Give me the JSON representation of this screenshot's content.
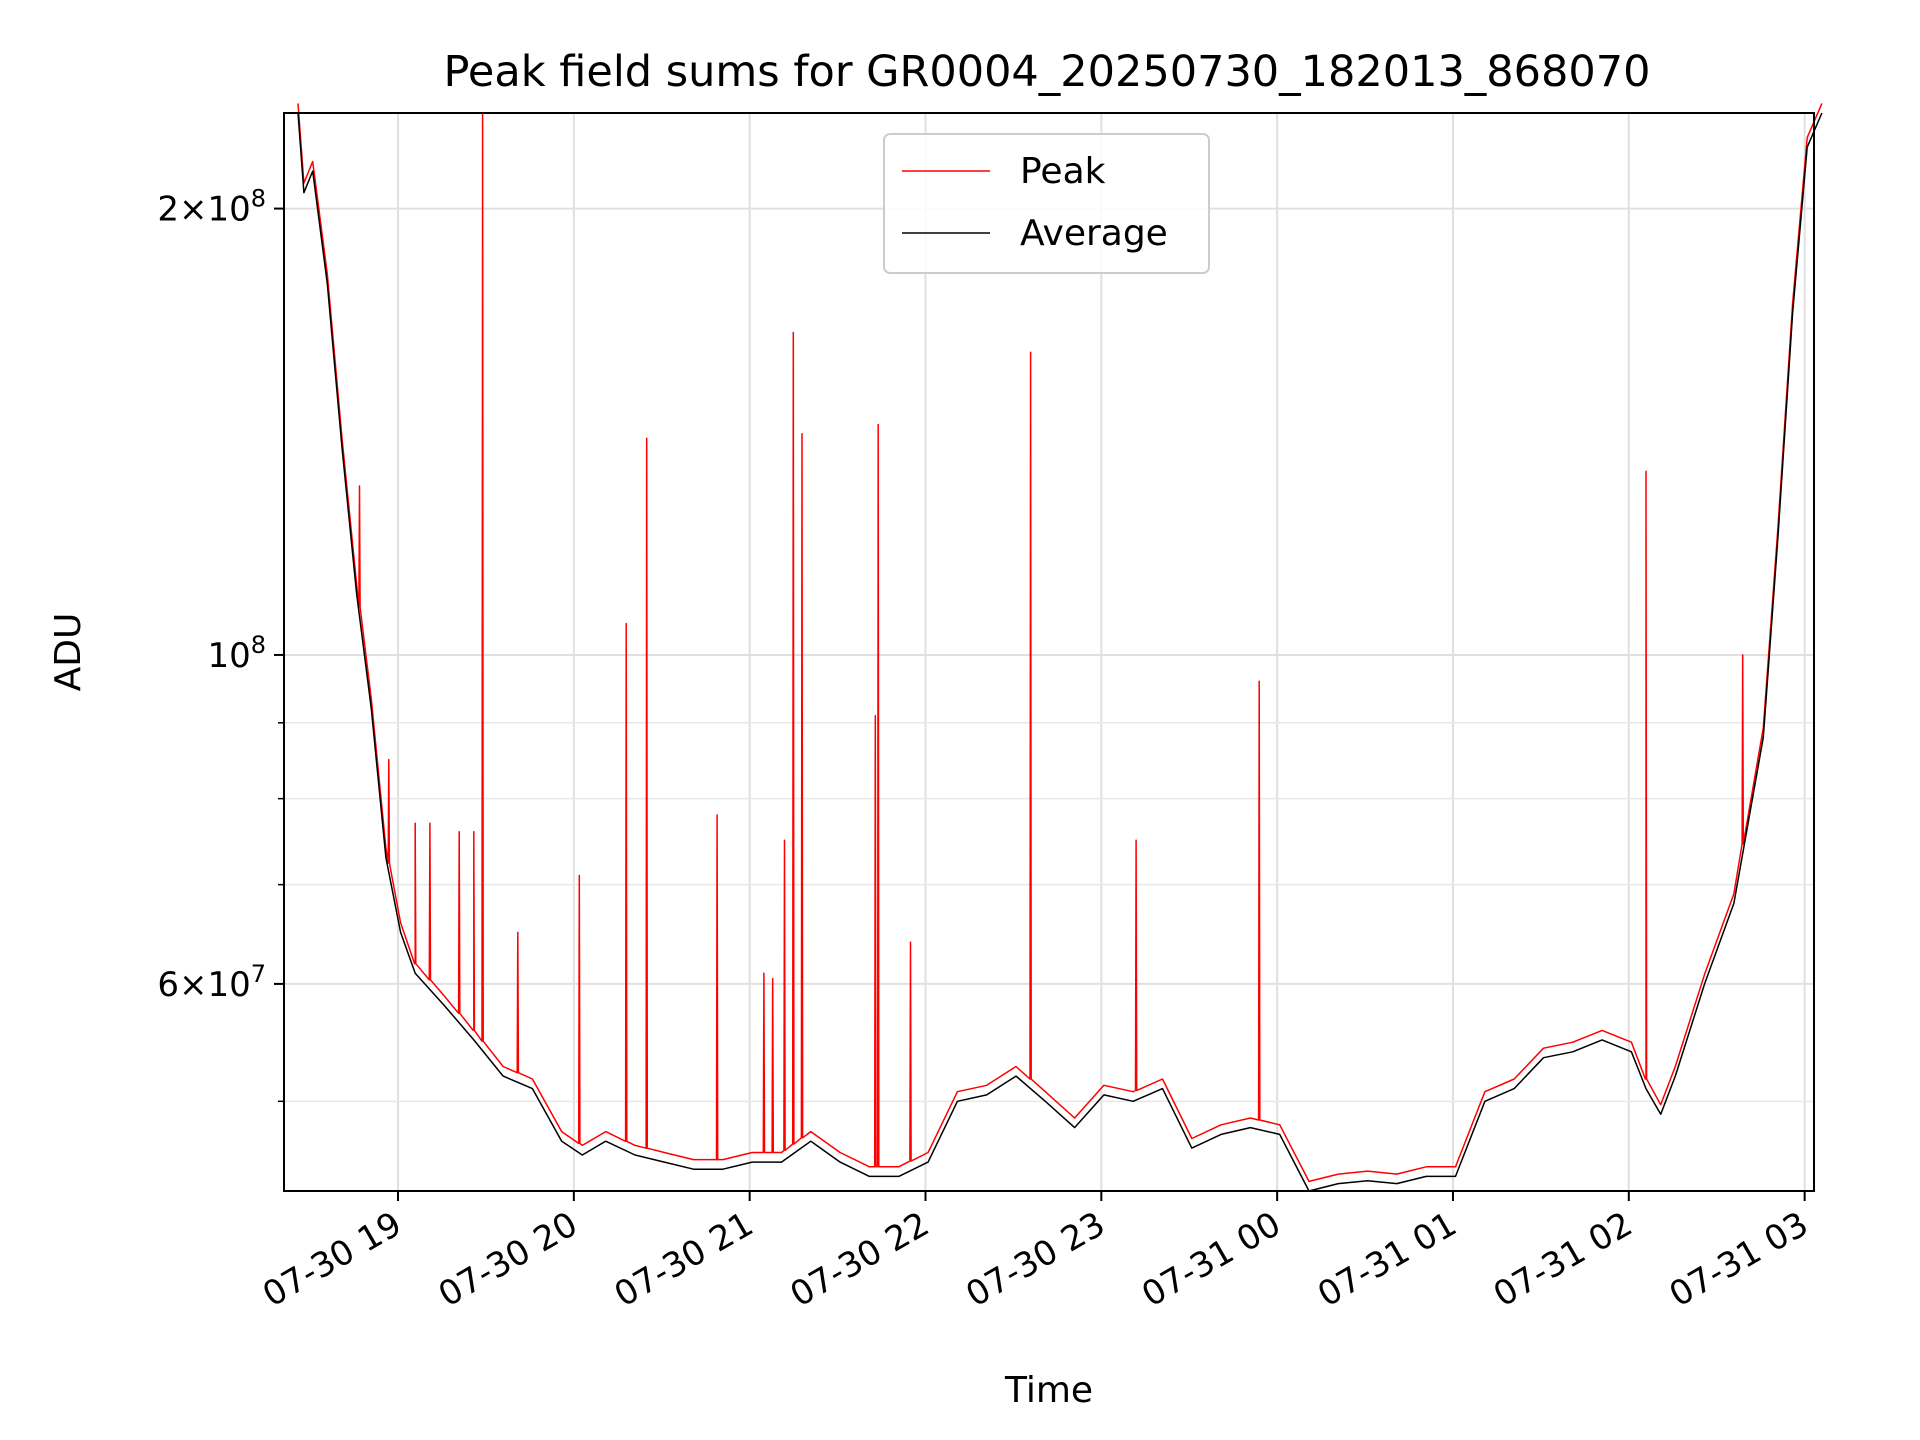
{
  "chart_data": {
    "type": "line",
    "title": "Peak field sums for GR0004_20250730_182013_868070",
    "xlabel": "Time",
    "ylabel": "ADU",
    "yscale": "log",
    "ylim": [
      43500000,
      232000000
    ],
    "xlim": [
      "2025-07-30 18:20",
      "2025-07-31 03:00"
    ],
    "grid": true,
    "legend_position": "upper center",
    "x_ticks": [
      "07-30 19",
      "07-30 20",
      "07-30 21",
      "07-30 22",
      "07-30 23",
      "07-31 00",
      "07-31 01",
      "07-31 02",
      "07-31 03"
    ],
    "y_ticks": [
      {
        "value": 200000000,
        "mantissa": "2",
        "base": "10",
        "exp": "8"
      },
      {
        "value": 100000000,
        "mantissa": "",
        "base": "10",
        "exp": "8"
      },
      {
        "value": 60000000,
        "mantissa": "6",
        "base": "10",
        "exp": "7"
      }
    ],
    "colors": {
      "Peak": "#ff0000",
      "Average": "#000000"
    },
    "series": [
      {
        "name": "Average",
        "x": [
          "2025-07-30 18:20",
          "2025-07-30 18:22",
          "2025-07-30 18:25",
          "2025-07-30 18:30",
          "2025-07-30 18:35",
          "2025-07-30 18:40",
          "2025-07-30 18:45",
          "2025-07-30 18:50",
          "2025-07-30 18:55",
          "2025-07-30 19:00",
          "2025-07-30 19:10",
          "2025-07-30 19:20",
          "2025-07-30 19:30",
          "2025-07-30 19:40",
          "2025-07-30 19:50",
          "2025-07-30 19:57",
          "2025-07-30 20:05",
          "2025-07-30 20:15",
          "2025-07-30 20:25",
          "2025-07-30 20:35",
          "2025-07-30 20:45",
          "2025-07-30 20:55",
          "2025-07-30 21:05",
          "2025-07-30 21:15",
          "2025-07-30 21:25",
          "2025-07-30 21:35",
          "2025-07-30 21:45",
          "2025-07-30 21:55",
          "2025-07-30 22:05",
          "2025-07-30 22:15",
          "2025-07-30 22:25",
          "2025-07-30 22:35",
          "2025-07-30 22:45",
          "2025-07-30 22:55",
          "2025-07-30 23:05",
          "2025-07-30 23:15",
          "2025-07-30 23:25",
          "2025-07-30 23:35",
          "2025-07-30 23:45",
          "2025-07-30 23:55",
          "2025-07-31 00:05",
          "2025-07-31 00:15",
          "2025-07-31 00:25",
          "2025-07-31 00:35",
          "2025-07-31 00:45",
          "2025-07-31 00:55",
          "2025-07-31 01:05",
          "2025-07-31 01:15",
          "2025-07-31 01:25",
          "2025-07-31 01:35",
          "2025-07-31 01:45",
          "2025-07-31 01:55",
          "2025-07-31 02:00",
          "2025-07-31 02:05",
          "2025-07-31 02:10",
          "2025-07-31 02:20",
          "2025-07-31 02:30",
          "2025-07-31 02:40",
          "2025-07-31 02:45",
          "2025-07-31 02:50",
          "2025-07-31 02:55",
          "2025-07-31 03:00"
        ],
        "y": [
          232000000,
          205000000,
          212000000,
          178000000,
          138000000,
          110000000,
          92000000,
          73000000,
          65000000,
          61000000,
          58000000,
          55000000,
          52000000,
          51000000,
          47000000,
          46000000,
          47000000,
          46000000,
          45500000,
          45000000,
          45000000,
          45500000,
          45500000,
          47000000,
          45500000,
          44500000,
          44500000,
          45500000,
          50000000,
          50500000,
          52000000,
          50000000,
          48000000,
          50500000,
          50000000,
          51000000,
          46500000,
          47500000,
          48000000,
          47500000,
          43500000,
          44000000,
          44200000,
          44000000,
          44500000,
          44500000,
          50000000,
          51000000,
          53500000,
          54000000,
          55000000,
          54000000,
          51000000,
          49000000,
          52000000,
          60000000,
          68000000,
          88000000,
          120000000,
          170000000,
          220000000,
          232000000
        ]
      },
      {
        "name": "Peak",
        "spikes": [
          {
            "x": "2025-07-30 18:41",
            "y": 130000000
          },
          {
            "x": "2025-07-30 18:51",
            "y": 85000000
          },
          {
            "x": "2025-07-30 19:00",
            "y": 77000000
          },
          {
            "x": "2025-07-30 19:05",
            "y": 77000000
          },
          {
            "x": "2025-07-30 19:15",
            "y": 76000000
          },
          {
            "x": "2025-07-30 19:20",
            "y": 76000000
          },
          {
            "x": "2025-07-30 19:23",
            "y": 232000000
          },
          {
            "x": "2025-07-30 19:35",
            "y": 65000000
          },
          {
            "x": "2025-07-30 19:56",
            "y": 71000000
          },
          {
            "x": "2025-07-30 20:12",
            "y": 105000000
          },
          {
            "x": "2025-07-30 20:19",
            "y": 140000000
          },
          {
            "x": "2025-07-30 20:43",
            "y": 78000000
          },
          {
            "x": "2025-07-30 20:59",
            "y": 61000000
          },
          {
            "x": "2025-07-30 21:02",
            "y": 60500000
          },
          {
            "x": "2025-07-30 21:06",
            "y": 75000000
          },
          {
            "x": "2025-07-30 21:09",
            "y": 165000000
          },
          {
            "x": "2025-07-30 21:12",
            "y": 141000000
          },
          {
            "x": "2025-07-30 21:37",
            "y": 91000000
          },
          {
            "x": "2025-07-30 21:38",
            "y": 143000000
          },
          {
            "x": "2025-07-30 21:49",
            "y": 64000000
          },
          {
            "x": "2025-07-30 22:30",
            "y": 160000000
          },
          {
            "x": "2025-07-30 23:06",
            "y": 75000000
          },
          {
            "x": "2025-07-30 23:48",
            "y": 96000000
          },
          {
            "x": "2025-07-31 02:00",
            "y": 133000000
          },
          {
            "x": "2025-07-31 02:33",
            "y": 100000000
          }
        ]
      }
    ]
  }
}
